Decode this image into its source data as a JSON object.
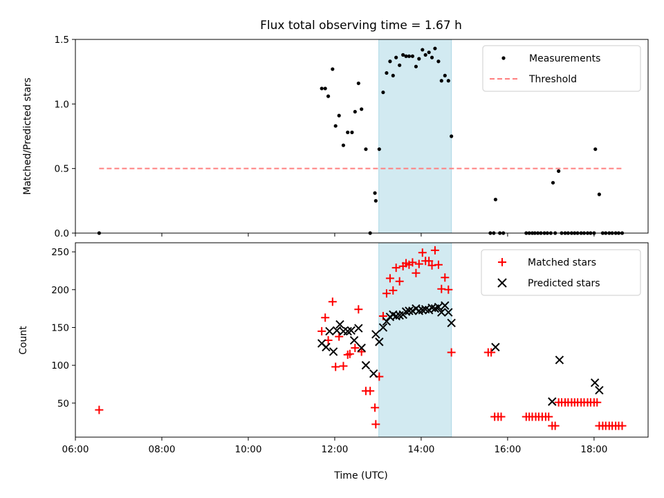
{
  "title": "Flux total observing time = 1.67 h",
  "colors": {
    "measurement": "#000000",
    "threshold": "#ff7f7f",
    "matched": "#ff0000",
    "predicted": "#000000",
    "highlight": "#add8e6"
  },
  "chart_data": [
    {
      "type": "scatter",
      "ylabel": "Matched/Predicted stars",
      "xlim": [
        6.0,
        19.25
      ],
      "ylim": [
        0,
        1.5
      ],
      "x_ticks": [
        6,
        8,
        10,
        12,
        14,
        16,
        18
      ],
      "y_ticks": [
        0,
        0.5,
        1.0,
        1.5
      ],
      "y_tick_labels": [
        "0.0",
        "0.5",
        "1.0",
        "1.5"
      ],
      "legend": [
        "Measurements",
        "Threshold"
      ],
      "legend_position": "top-right",
      "highlight_span": [
        13.02,
        14.7
      ],
      "threshold": {
        "value": 0.5,
        "x": [
          6.55,
          18.65
        ]
      },
      "series": [
        {
          "name": "Measurements",
          "points": [
            [
              6.55,
              0.0
            ],
            [
              11.7,
              1.12
            ],
            [
              11.78,
              1.12
            ],
            [
              11.85,
              1.06
            ],
            [
              11.95,
              1.27
            ],
            [
              12.02,
              0.83
            ],
            [
              12.1,
              0.91
            ],
            [
              12.2,
              0.68
            ],
            [
              12.3,
              0.78
            ],
            [
              12.4,
              0.78
            ],
            [
              12.47,
              0.94
            ],
            [
              12.55,
              1.16
            ],
            [
              12.62,
              0.96
            ],
            [
              12.72,
              0.65
            ],
            [
              12.82,
              0.0
            ],
            [
              12.93,
              0.31
            ],
            [
              12.95,
              0.25
            ],
            [
              13.03,
              0.65
            ],
            [
              13.12,
              1.09
            ],
            [
              13.2,
              1.24
            ],
            [
              13.28,
              1.33
            ],
            [
              13.35,
              1.22
            ],
            [
              13.42,
              1.36
            ],
            [
              13.5,
              1.3
            ],
            [
              13.58,
              1.38
            ],
            [
              13.65,
              1.37
            ],
            [
              13.72,
              1.37
            ],
            [
              13.8,
              1.37
            ],
            [
              13.88,
              1.29
            ],
            [
              13.95,
              1.35
            ],
            [
              14.03,
              1.42
            ],
            [
              14.1,
              1.38
            ],
            [
              14.18,
              1.4
            ],
            [
              14.25,
              1.36
            ],
            [
              14.32,
              1.43
            ],
            [
              14.4,
              1.33
            ],
            [
              14.47,
              1.18
            ],
            [
              14.55,
              1.22
            ],
            [
              14.63,
              1.18
            ],
            [
              14.7,
              0.75
            ],
            [
              15.6,
              0.0
            ],
            [
              15.68,
              0.0
            ],
            [
              15.72,
              0.26
            ],
            [
              15.82,
              0.0
            ],
            [
              15.9,
              0.0
            ],
            [
              16.43,
              0.0
            ],
            [
              16.5,
              0.0
            ],
            [
              16.57,
              0.0
            ],
            [
              16.63,
              0.0
            ],
            [
              16.7,
              0.0
            ],
            [
              16.77,
              0.0
            ],
            [
              16.85,
              0.0
            ],
            [
              16.92,
              0.0
            ],
            [
              17.0,
              0.0
            ],
            [
              17.05,
              0.39
            ],
            [
              17.1,
              0.0
            ],
            [
              17.18,
              0.48
            ],
            [
              17.25,
              0.0
            ],
            [
              17.33,
              0.0
            ],
            [
              17.4,
              0.0
            ],
            [
              17.48,
              0.0
            ],
            [
              17.55,
              0.0
            ],
            [
              17.62,
              0.0
            ],
            [
              17.7,
              0.0
            ],
            [
              17.77,
              0.0
            ],
            [
              17.85,
              0.0
            ],
            [
              17.92,
              0.0
            ],
            [
              18.0,
              0.0
            ],
            [
              18.03,
              0.65
            ],
            [
              18.12,
              0.3
            ],
            [
              18.2,
              0.0
            ],
            [
              18.27,
              0.0
            ],
            [
              18.35,
              0.0
            ],
            [
              18.42,
              0.0
            ],
            [
              18.5,
              0.0
            ],
            [
              18.57,
              0.0
            ],
            [
              18.65,
              0.0
            ]
          ]
        }
      ]
    },
    {
      "type": "scatter",
      "xlabel": "Time (UTC)",
      "ylabel": "Count",
      "xlim": [
        6.0,
        19.25
      ],
      "ylim": [
        5,
        262
      ],
      "x_ticks": [
        6,
        8,
        10,
        12,
        14,
        16,
        18
      ],
      "x_tick_labels": [
        "06:00",
        "08:00",
        "10:00",
        "12:00",
        "14:00",
        "16:00",
        "18:00"
      ],
      "y_ticks": [
        50,
        100,
        150,
        200,
        250
      ],
      "legend": [
        "Matched stars",
        "Predicted stars"
      ],
      "legend_position": "top-right",
      "highlight_span": [
        13.02,
        14.7
      ],
      "series": [
        {
          "name": "Matched stars",
          "points": [
            [
              6.55,
              41
            ],
            [
              11.7,
              145
            ],
            [
              11.78,
              163
            ],
            [
              11.85,
              133
            ],
            [
              11.95,
              184
            ],
            [
              12.02,
              98
            ],
            [
              12.1,
              138
            ],
            [
              12.2,
              99
            ],
            [
              12.3,
              114
            ],
            [
              12.35,
              115
            ],
            [
              12.47,
              123
            ],
            [
              12.55,
              174
            ],
            [
              12.62,
              118
            ],
            [
              12.72,
              66
            ],
            [
              12.82,
              66
            ],
            [
              12.93,
              44
            ],
            [
              12.95,
              22
            ],
            [
              13.03,
              85
            ],
            [
              13.12,
              165
            ],
            [
              13.2,
              195
            ],
            [
              13.28,
              215
            ],
            [
              13.35,
              199
            ],
            [
              13.42,
              229
            ],
            [
              13.5,
              211
            ],
            [
              13.58,
              231
            ],
            [
              13.65,
              235
            ],
            [
              13.72,
              233
            ],
            [
              13.8,
              236
            ],
            [
              13.88,
              222
            ],
            [
              13.95,
              234
            ],
            [
              14.03,
              249
            ],
            [
              14.1,
              238
            ],
            [
              14.18,
              238
            ],
            [
              14.25,
              232
            ],
            [
              14.32,
              252
            ],
            [
              14.4,
              233
            ],
            [
              14.47,
              201
            ],
            [
              14.55,
              216
            ],
            [
              14.63,
              200
            ],
            [
              14.7,
              117
            ],
            [
              15.55,
              117
            ],
            [
              15.62,
              117
            ],
            [
              15.7,
              32
            ],
            [
              15.78,
              32
            ],
            [
              15.85,
              32
            ],
            [
              16.43,
              32
            ],
            [
              16.5,
              32
            ],
            [
              16.57,
              32
            ],
            [
              16.65,
              32
            ],
            [
              16.72,
              32
            ],
            [
              16.8,
              32
            ],
            [
              16.88,
              32
            ],
            [
              16.95,
              32
            ],
            [
              17.03,
              20
            ],
            [
              17.1,
              20
            ],
            [
              17.18,
              51
            ],
            [
              17.25,
              51
            ],
            [
              17.33,
              51
            ],
            [
              17.4,
              51
            ],
            [
              17.48,
              51
            ],
            [
              17.55,
              51
            ],
            [
              17.62,
              51
            ],
            [
              17.7,
              51
            ],
            [
              17.77,
              51
            ],
            [
              17.85,
              51
            ],
            [
              17.92,
              51
            ],
            [
              18.0,
              51
            ],
            [
              18.07,
              51
            ],
            [
              18.12,
              20
            ],
            [
              18.2,
              20
            ],
            [
              18.27,
              20
            ],
            [
              18.35,
              20
            ],
            [
              18.42,
              20
            ],
            [
              18.5,
              20
            ],
            [
              18.57,
              20
            ],
            [
              18.65,
              20
            ]
          ]
        },
        {
          "name": "Predicted stars",
          "points": [
            [
              11.7,
              129
            ],
            [
              11.8,
              124
            ],
            [
              11.88,
              145
            ],
            [
              11.97,
              118
            ],
            [
              12.05,
              146
            ],
            [
              12.12,
              154
            ],
            [
              12.2,
              145
            ],
            [
              12.3,
              145
            ],
            [
              12.38,
              146
            ],
            [
              12.45,
              133
            ],
            [
              12.55,
              149
            ],
            [
              12.62,
              123
            ],
            [
              12.72,
              100
            ],
            [
              12.9,
              89
            ],
            [
              12.95,
              141
            ],
            [
              13.03,
              131
            ],
            [
              13.12,
              150
            ],
            [
              13.2,
              158
            ],
            [
              13.28,
              164
            ],
            [
              13.35,
              167
            ],
            [
              13.42,
              165
            ],
            [
              13.5,
              166
            ],
            [
              13.58,
              167
            ],
            [
              13.65,
              171
            ],
            [
              13.72,
              172
            ],
            [
              13.8,
              172
            ],
            [
              13.88,
              175
            ],
            [
              13.95,
              172
            ],
            [
              14.03,
              173
            ],
            [
              14.1,
              174
            ],
            [
              14.18,
              173
            ],
            [
              14.25,
              176
            ],
            [
              14.32,
              175
            ],
            [
              14.4,
              177
            ],
            [
              14.47,
              170
            ],
            [
              14.55,
              179
            ],
            [
              14.63,
              170
            ],
            [
              14.7,
              156
            ],
            [
              15.72,
              124
            ],
            [
              17.03,
              52
            ],
            [
              17.2,
              107
            ],
            [
              18.02,
              77
            ],
            [
              18.12,
              67
            ]
          ]
        }
      ]
    }
  ]
}
